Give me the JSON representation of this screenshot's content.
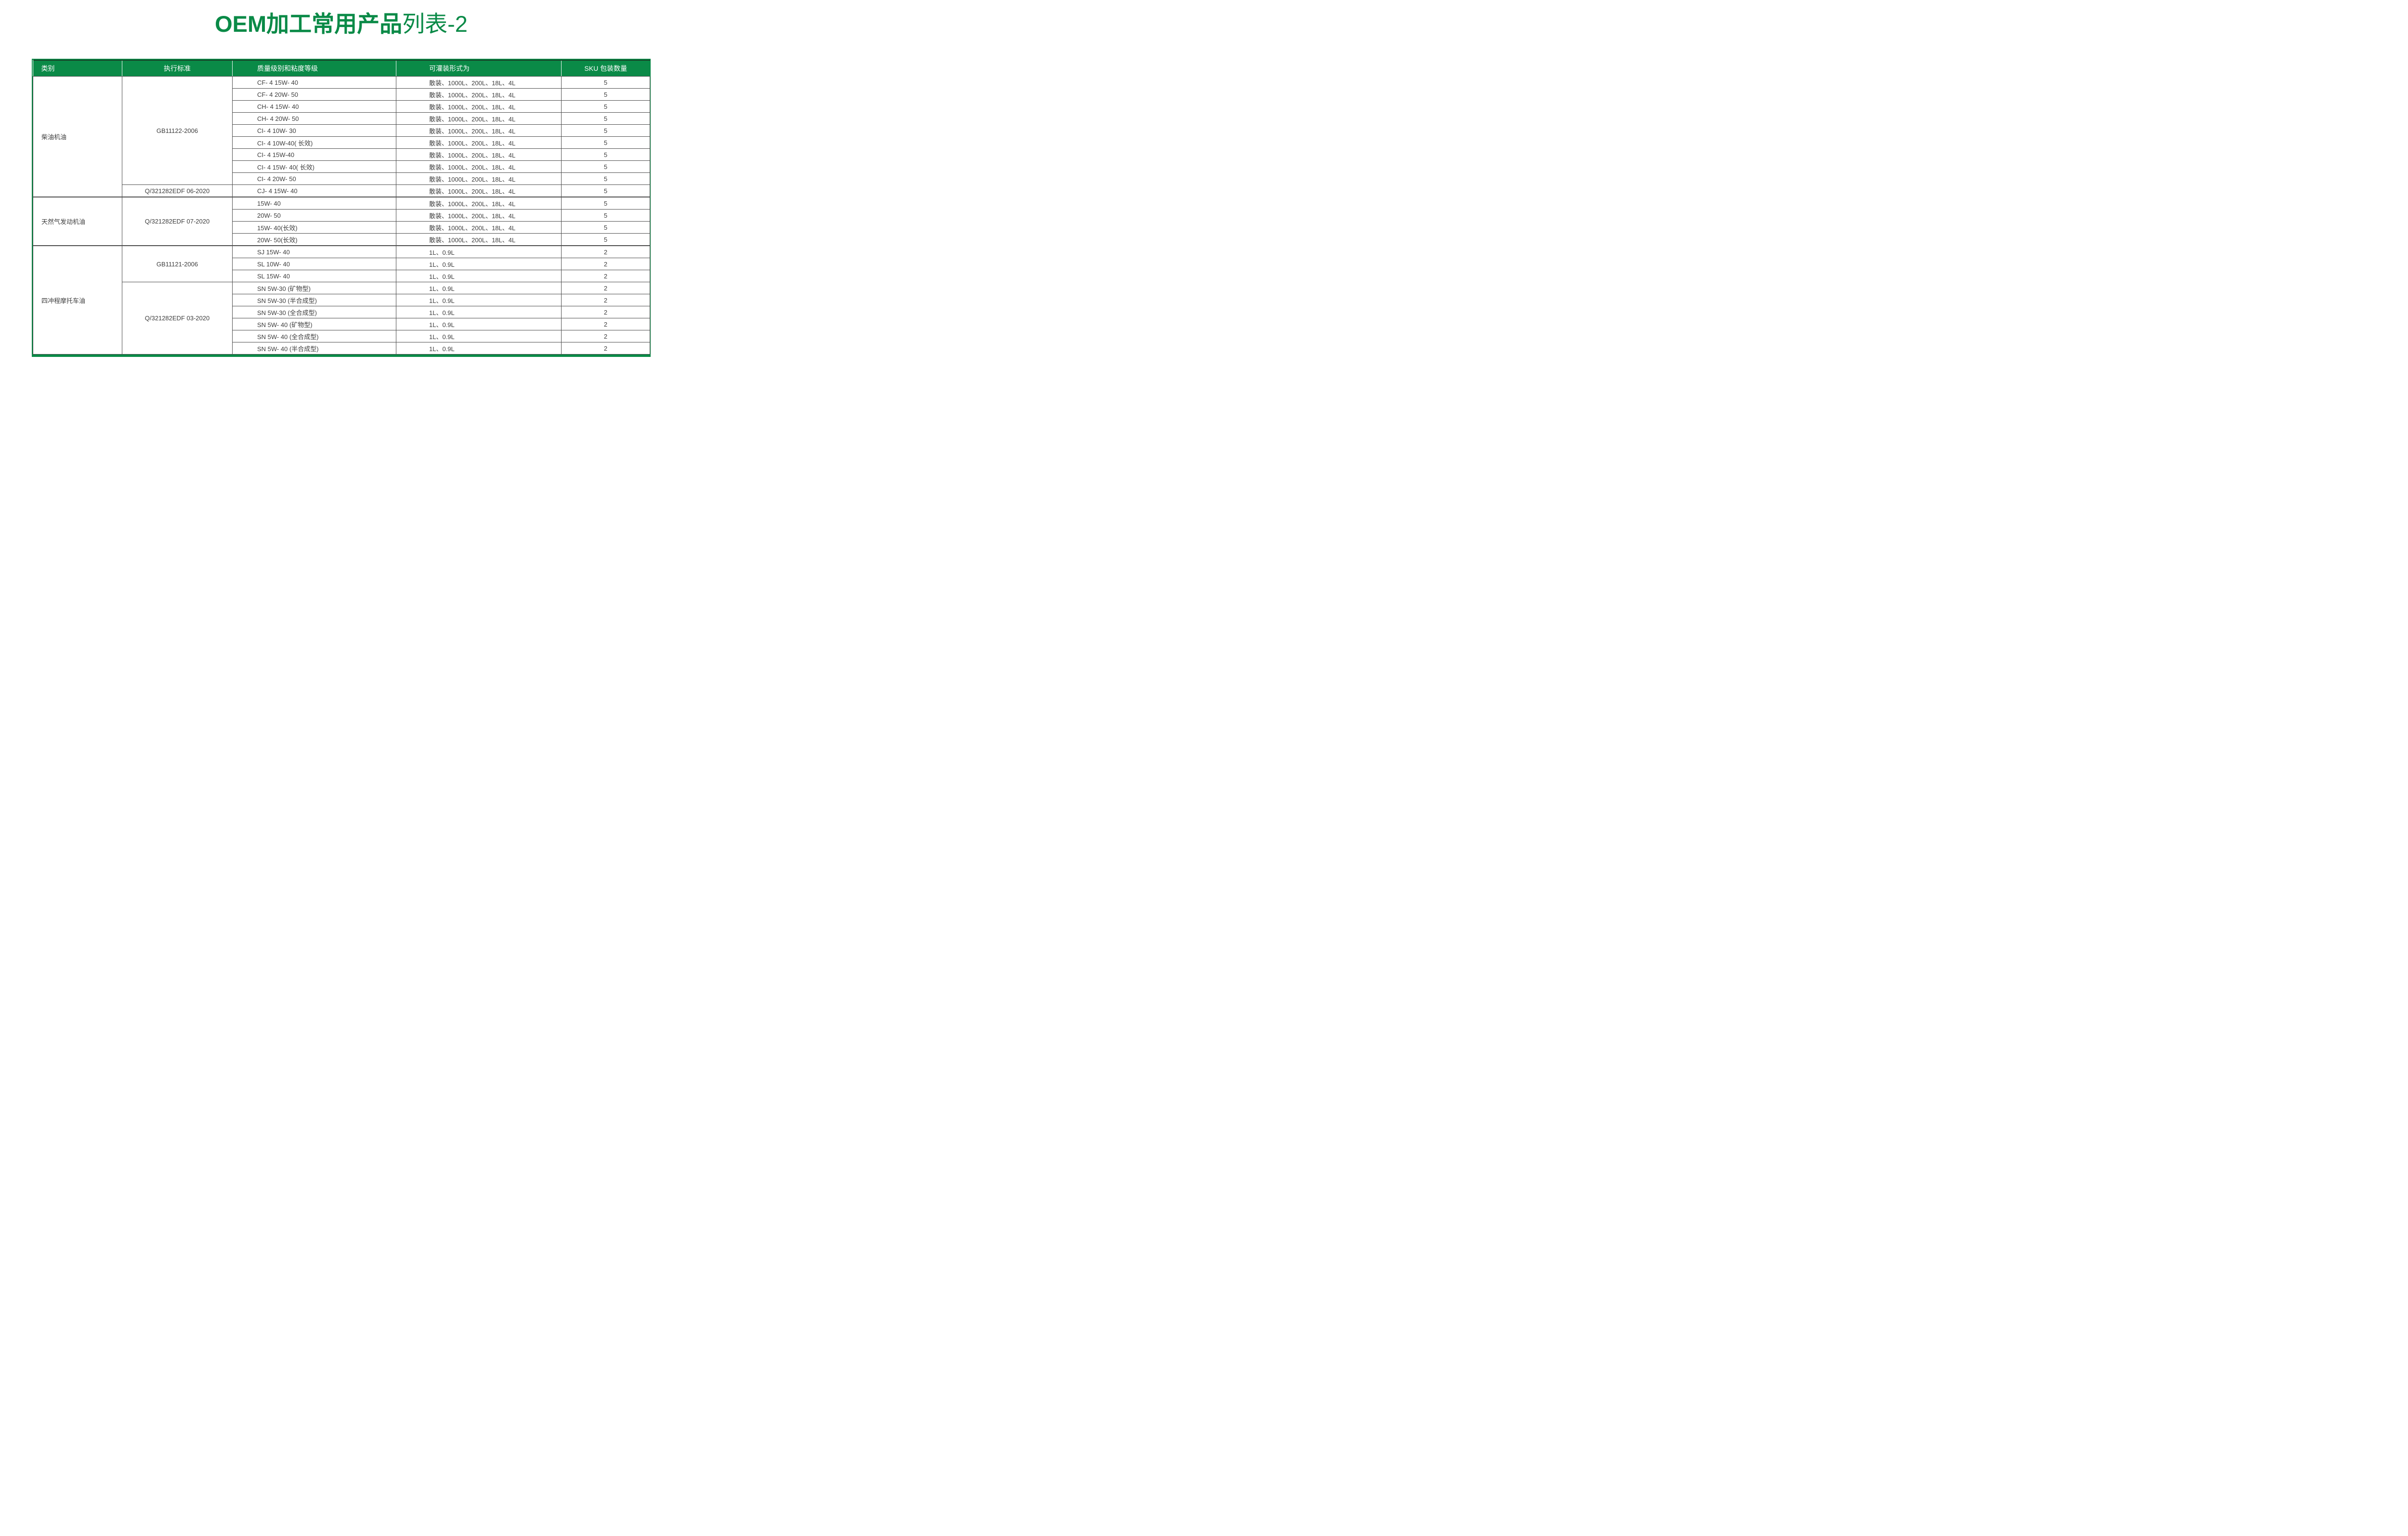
{
  "title": {
    "bold_part": "OEM加工常用产品",
    "regular_part": "列表-2"
  },
  "colors": {
    "accent_green": "#0a8a47",
    "dark_green_line": "#164127",
    "grid_gray": "#4f4f4f",
    "body_text": "#3d3d3d",
    "header_text": "#ffffff"
  },
  "table": {
    "headers": [
      "类别",
      "执行标准",
      "质量级别和粘度等级",
      "可灌装形式为",
      "SKU 包装数量"
    ],
    "sections": [
      {
        "category": "柴油机油",
        "standards": [
          {
            "name": "GB11122-2006",
            "rows": [
              {
                "grade": "CF- 4 15W- 40",
                "fill": "散装、1000L、200L、18L、4L",
                "sku": "5"
              },
              {
                "grade": "CF- 4 20W- 50",
                "fill": "散装、1000L、200L、18L、4L",
                "sku": "5"
              },
              {
                "grade": "CH- 4 15W- 40",
                "fill": "散装、1000L、200L、18L、4L",
                "sku": "5"
              },
              {
                "grade": "CH- 4 20W- 50",
                "fill": "散装、1000L、200L、18L、4L",
                "sku": "5"
              },
              {
                "grade": "CI- 4 10W- 30",
                "fill": "散装、1000L、200L、18L、4L",
                "sku": "5"
              },
              {
                "grade": "CI- 4 10W-40( 长效)",
                "fill": "散装、1000L、200L、18L、4L",
                "sku": "5"
              },
              {
                "grade": "CI- 4 15W-40",
                "fill": "散装、1000L、200L、18L、4L",
                "sku": "5"
              },
              {
                "grade": "CI- 4 15W- 40( 长效)",
                "fill": "散装、1000L、200L、18L、4L",
                "sku": "5"
              },
              {
                "grade": "CI- 4 20W- 50",
                "fill": "散装、1000L、200L、18L、4L",
                "sku": "5"
              }
            ]
          },
          {
            "name": "Q/321282EDF 06-2020",
            "rows": [
              {
                "grade": "CJ- 4 15W- 40",
                "fill": "散装、1000L、200L、18L、4L",
                "sku": "5"
              }
            ]
          }
        ]
      },
      {
        "category": "天然气发动机油",
        "standards": [
          {
            "name": "Q/321282EDF 07-2020",
            "rows": [
              {
                "grade": "15W- 40",
                "fill": "散装、1000L、200L、18L、4L",
                "sku": "5"
              },
              {
                "grade": "20W- 50",
                "fill": "散装、1000L、200L、18L、4L",
                "sku": "5"
              },
              {
                "grade": "15W- 40(长效)",
                "fill": "散装、1000L、200L、18L、4L",
                "sku": "5"
              },
              {
                "grade": "20W- 50(长效)",
                "fill": "散装、1000L、200L、18L、4L",
                "sku": "5"
              }
            ]
          }
        ]
      },
      {
        "category": "四冲程摩托车油",
        "standards": [
          {
            "name": "GB11121-2006",
            "rows": [
              {
                "grade": "SJ 15W- 40",
                "fill": "1L、0.9L",
                "sku": "2"
              },
              {
                "grade": "SL 10W- 40",
                "fill": "1L、0.9L",
                "sku": "2"
              },
              {
                "grade": "SL 15W- 40",
                "fill": "1L、0.9L",
                "sku": "2"
              }
            ]
          },
          {
            "name": "Q/321282EDF 03-2020",
            "rows": [
              {
                "grade": "SN 5W-30 (矿物型)",
                "fill": "1L、0.9L",
                "sku": "2"
              },
              {
                "grade": "SN 5W-30 (半合成型)",
                "fill": "1L、0.9L",
                "sku": "2"
              },
              {
                "grade": "SN 5W-30 (全合成型)",
                "fill": "1L、0.9L",
                "sku": "2"
              },
              {
                "grade": "SN 5W- 40 (矿物型)",
                "fill": "1L、0.9L",
                "sku": "2"
              },
              {
                "grade": "SN 5W- 40 (全合成型)",
                "fill": "1L、0.9L",
                "sku": "2"
              },
              {
                "grade": "SN 5W- 40 (半合成型)",
                "fill": "1L、0.9L",
                "sku": "2"
              }
            ]
          }
        ]
      }
    ]
  }
}
